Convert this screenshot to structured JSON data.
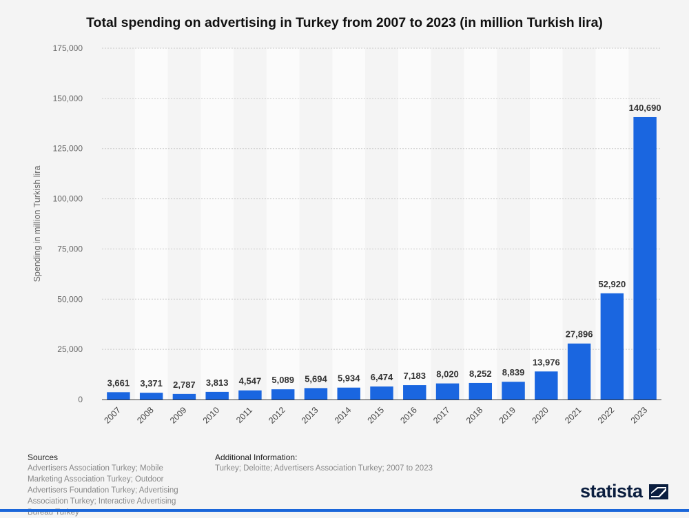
{
  "chart_data": {
    "type": "bar",
    "title": "Total spending on advertising in Turkey from 2007 to 2023 (in million Turkish lira)",
    "xlabel": "",
    "ylabel": "Spending in million Turkish lira",
    "categories": [
      "2007",
      "2008",
      "2009",
      "2010",
      "2011",
      "2012",
      "2013",
      "2014",
      "2015",
      "2016",
      "2017",
      "2018",
      "2019",
      "2020",
      "2021",
      "2022",
      "2023"
    ],
    "values": [
      3661,
      3371,
      2787,
      3813,
      4547,
      5089,
      5694,
      5934,
      6474,
      7183,
      8020,
      8252,
      8839,
      13976,
      27896,
      52920,
      140690
    ],
    "value_labels": [
      "3,661",
      "3,371",
      "2,787",
      "3,813",
      "4,547",
      "5,089",
      "5,694",
      "5,934",
      "6,474",
      "7,183",
      "8,020",
      "8,252",
      "8,839",
      "13,976",
      "27,896",
      "52,920",
      "140,690"
    ],
    "ylim": [
      0,
      175000
    ],
    "yticks": [
      0,
      25000,
      50000,
      75000,
      100000,
      125000,
      150000,
      175000
    ],
    "ytick_labels": [
      "0",
      "25,000",
      "50,000",
      "75,000",
      "100,000",
      "125,000",
      "150,000",
      "175,000"
    ],
    "grid": true,
    "bar_color": "#1a66e0"
  },
  "footer": {
    "sources_heading": "Sources",
    "sources_text": "Advertisers Association Turkey; Mobile Marketing Association Turkey; Outdoor Advertisers Foundation Turkey; Advertising Association Turkey; Interactive Advertising Bureau Turkey",
    "additional_heading": "Additional Information:",
    "additional_text": "Turkey; Deloitte; Advertisers Association Turkey; 2007 to 2023"
  },
  "brand": "statista"
}
